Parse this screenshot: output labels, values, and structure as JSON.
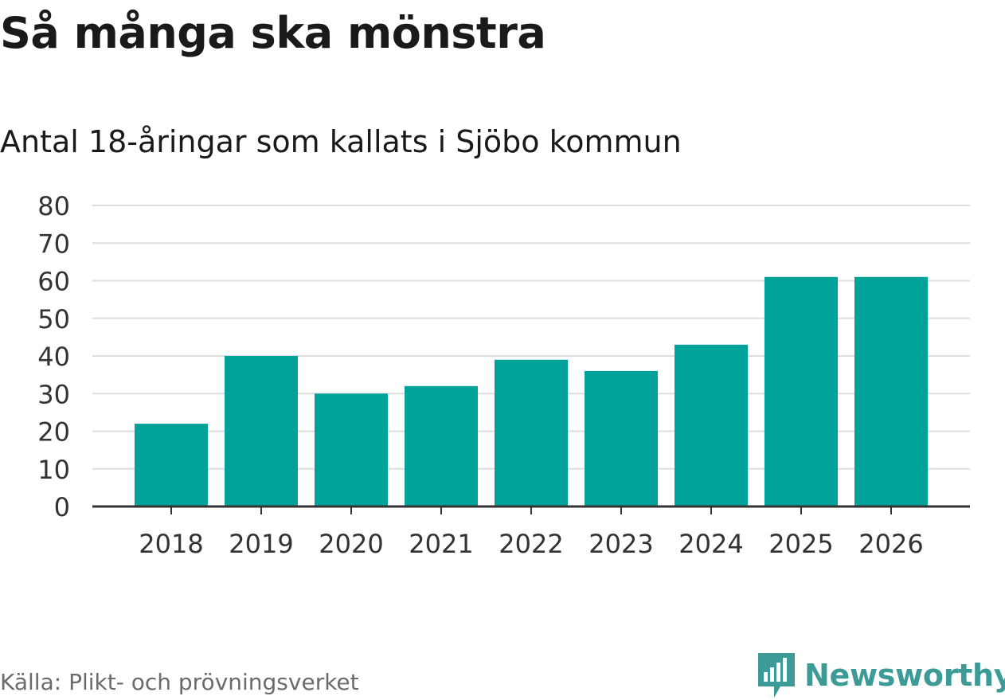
{
  "title": "Så många ska mönstra",
  "subtitle": "Antal 18-åringar som kallats i Sjöbo kommun",
  "source": "Källa: Plikt- och prövningsverket",
  "brand": {
    "name": "Newsworthy",
    "color": "#3c9b97",
    "icon": "newsworthy-logo-icon"
  },
  "chart_data": {
    "type": "bar",
    "categories": [
      "2018",
      "2019",
      "2020",
      "2021",
      "2022",
      "2023",
      "2024",
      "2025",
      "2026"
    ],
    "values": [
      22,
      40,
      30,
      32,
      39,
      36,
      43,
      61,
      61
    ],
    "title": "Så många ska mönstra",
    "subtitle": "Antal 18-åringar som kallats i Sjöbo kommun",
    "xlabel": "",
    "ylabel": "",
    "ylim": [
      0,
      80
    ],
    "yticks": [
      0,
      10,
      20,
      30,
      40,
      50,
      60,
      70,
      80
    ],
    "grid": true,
    "bar_color": "#00a29a",
    "grid_color": "#dddddd",
    "axis_color": "#333333"
  }
}
